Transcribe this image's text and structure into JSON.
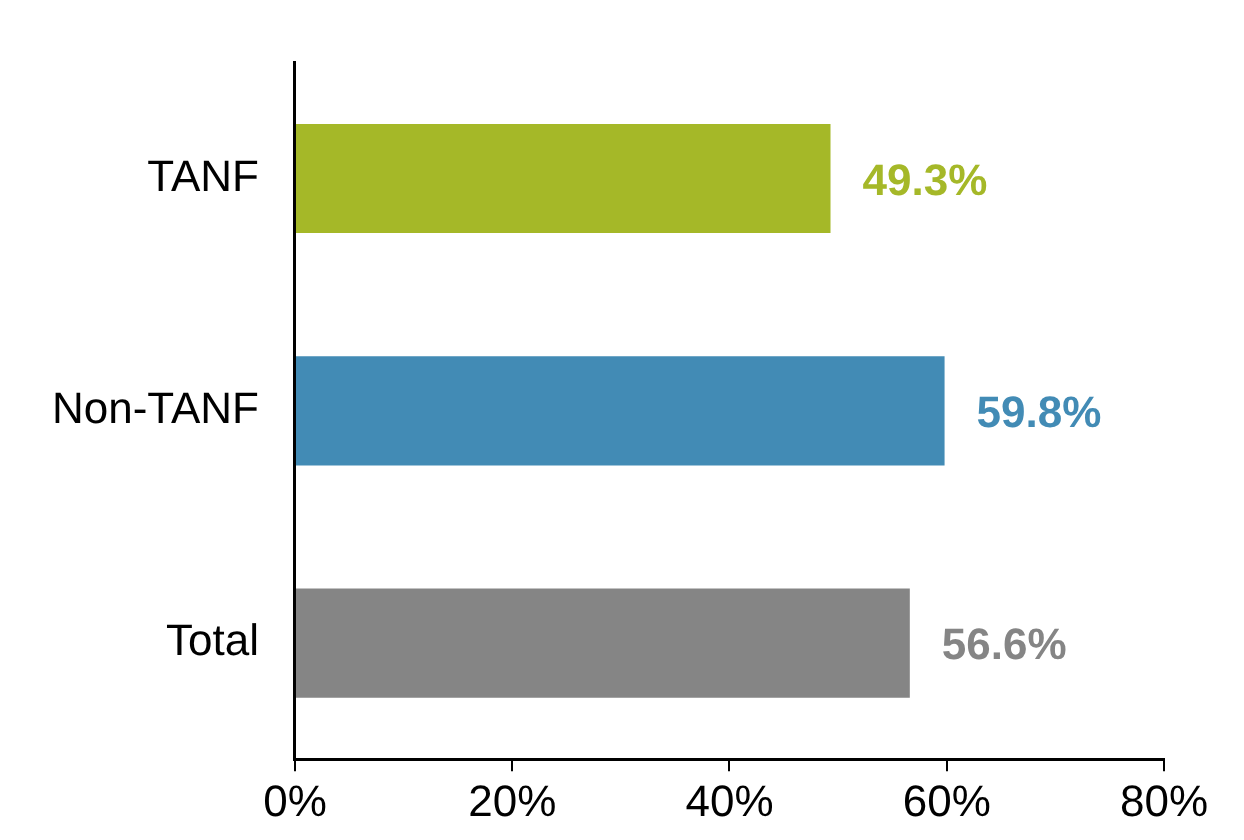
{
  "chart_data": {
    "type": "bar",
    "orientation": "horizontal",
    "categories": [
      "TANF",
      "Non-TANF",
      "Total"
    ],
    "values": [
      49.3,
      59.8,
      56.6
    ],
    "colors": [
      "#a5b828",
      "#428bb5",
      "#858585"
    ],
    "xlim": [
      0,
      80
    ],
    "xticks": [
      {
        "value": 0,
        "label": "0%"
      },
      {
        "value": 20,
        "label": "20%"
      },
      {
        "value": 40,
        "label": "40%"
      },
      {
        "value": 60,
        "label": "60%"
      },
      {
        "value": 80,
        "label": "80%"
      }
    ],
    "value_labels": [
      "49.3%",
      "59.8%",
      "56.6%"
    ],
    "grid": false,
    "legend": false
  }
}
